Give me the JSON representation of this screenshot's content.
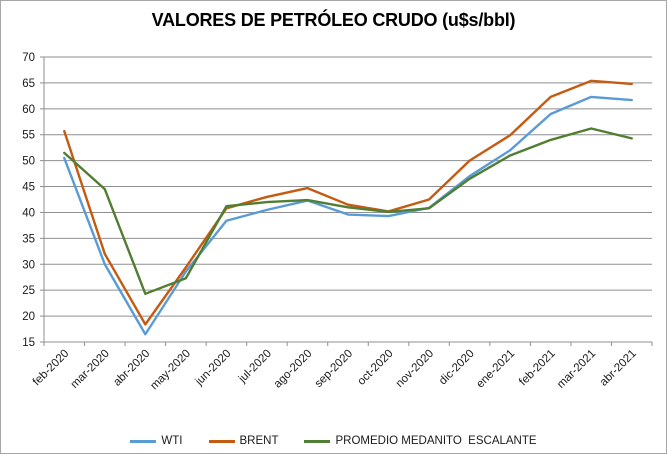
{
  "chart_data": {
    "type": "line",
    "title": "VALORES DE PETRÓLEO CRUDO (u$s/bbl)",
    "categories": [
      "feb-2020",
      "mar-2020",
      "abr-2020",
      "may-2020",
      "jun-2020",
      "jul-2020",
      "ago-2020",
      "sep-2020",
      "oct-2020",
      "nov-2020",
      "dic-2020",
      "ene-2021",
      "feb-2021",
      "mar-2021",
      "abr-2021"
    ],
    "series": [
      {
        "name": "WTI",
        "color": "#5B9BD5",
        "values": [
          50.5,
          30.0,
          16.5,
          28.6,
          38.4,
          40.5,
          42.3,
          39.6,
          39.3,
          40.9,
          47.0,
          52.0,
          59.0,
          62.3,
          61.7
        ]
      },
      {
        "name": "BRENT",
        "color": "#C55A11",
        "values": [
          55.7,
          32.0,
          18.4,
          29.4,
          40.8,
          43.0,
          44.7,
          41.5,
          40.2,
          42.5,
          50.0,
          54.9,
          62.3,
          65.4,
          64.8
        ]
      },
      {
        "name": "PROMEDIO MEDANITO  ESCALANTE",
        "color": "#507E32",
        "values": [
          51.5,
          44.5,
          24.3,
          27.3,
          41.2,
          42.0,
          42.4,
          41.0,
          40.1,
          40.8,
          46.5,
          51.0,
          54.0,
          56.2,
          54.3
        ]
      }
    ],
    "ylim": [
      15,
      70
    ],
    "ytick_step": 5,
    "ytick_labels": [
      "15",
      "20",
      "25",
      "30",
      "35",
      "40",
      "45",
      "50",
      "55",
      "60",
      "65",
      "70"
    ],
    "grid": true,
    "gridlines": "horizontal",
    "legend_position": "bottom",
    "axis_color": "#8F8F8F",
    "text_color": "#1a1a1a"
  }
}
